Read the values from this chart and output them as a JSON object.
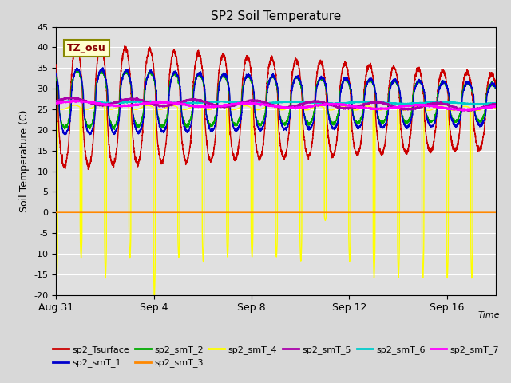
{
  "title": "SP2 Soil Temperature",
  "ylabel": "Soil Temperature (C)",
  "xlabel": "Time",
  "ylim": [
    -20,
    45
  ],
  "yticks": [
    -20,
    -15,
    -10,
    -5,
    0,
    5,
    10,
    15,
    20,
    25,
    30,
    35,
    40,
    45
  ],
  "xticks_positions": [
    0,
    4,
    8,
    12,
    16
  ],
  "xticks_labels": [
    "Aug 31",
    "Sep 4",
    "Sep 8",
    "Sep 12",
    "Sep 16"
  ],
  "annotation": "TZ_osu",
  "fig_bg_color": "#d8d8d8",
  "plot_bg_color": "#e0e0e0",
  "series_colors": {
    "sp2_Tsurface": "#cc0000",
    "sp2_smT_1": "#0000cc",
    "sp2_smT_2": "#00aa00",
    "sp2_smT_3": "#ff8800",
    "sp2_smT_4": "#ffff00",
    "sp2_smT_5": "#aa00aa",
    "sp2_smT_6": "#00cccc",
    "sp2_smT_7": "#ff00ff"
  },
  "legend_entries": [
    "sp2_Tsurface",
    "sp2_smT_1",
    "sp2_smT_2",
    "sp2_smT_3",
    "sp2_smT_4",
    "sp2_smT_5",
    "sp2_smT_6",
    "sp2_smT_7"
  ],
  "num_days": 18,
  "seed": 42
}
